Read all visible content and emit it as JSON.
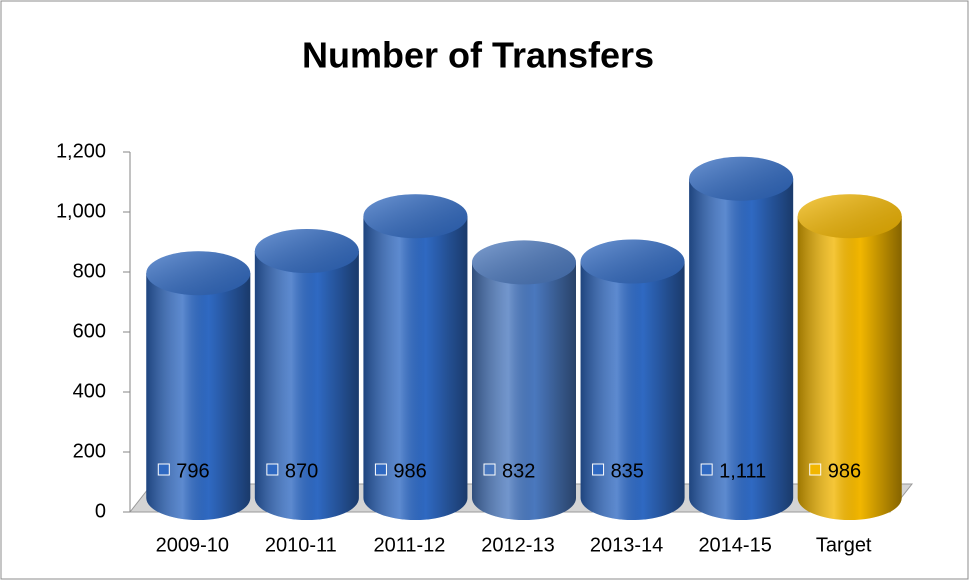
{
  "chart_data": {
    "type": "bar",
    "title": "Number of Transfers",
    "categories": [
      "2009-10",
      "2010-11",
      "2011-12",
      "2012-13",
      "2013-14",
      "2014-15",
      "Target"
    ],
    "values": [
      796,
      870,
      986,
      832,
      835,
      1111,
      986
    ],
    "value_labels": [
      "796",
      "870",
      "986",
      "832",
      "835",
      "1,111",
      "986"
    ],
    "colors": [
      "#2f69c2",
      "#2f69c2",
      "#2f69c2",
      "#4a78be",
      "#2f69c2",
      "#2f69c2",
      "#f2b600"
    ],
    "ylim": [
      0,
      1200
    ],
    "yticks": [
      0,
      200,
      400,
      600,
      800,
      {
        "value": 1000,
        "label": "1,000"
      },
      {
        "value": 1200,
        "label": "1,200"
      }
    ],
    "grid": false
  }
}
